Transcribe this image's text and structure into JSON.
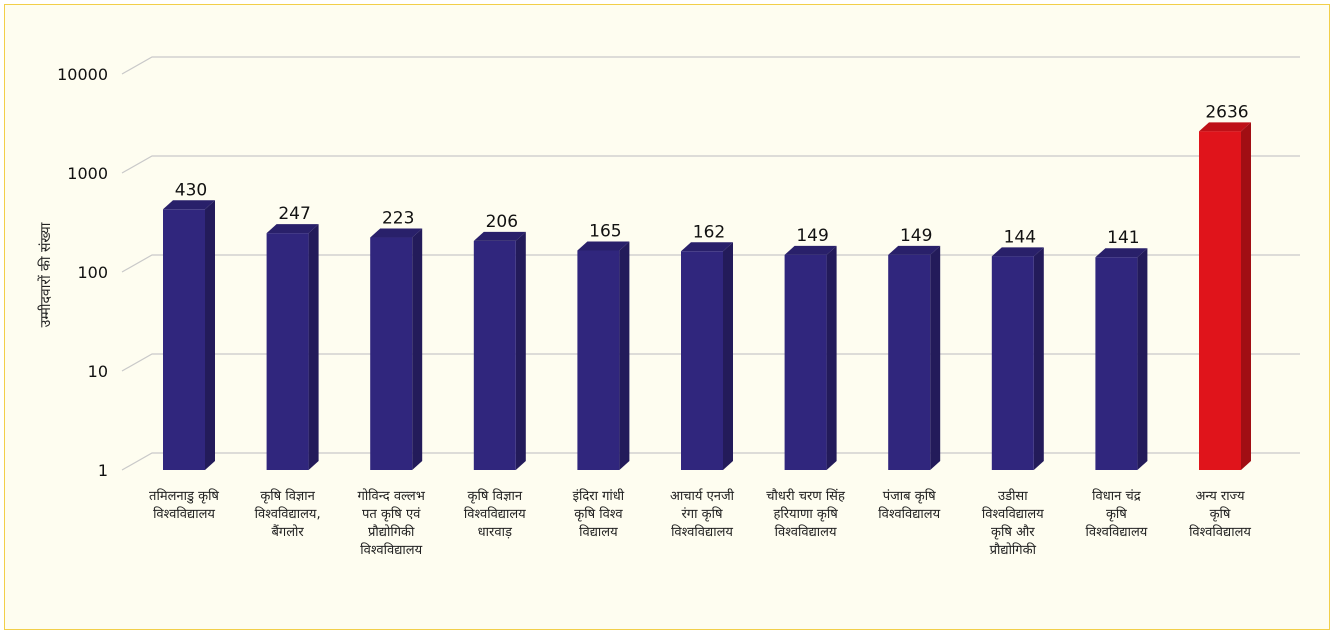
{
  "chart_data": {
    "type": "bar",
    "scale": "log",
    "ylabel": "उम्मीदवारों की संख्या",
    "ylim": [
      1,
      10000
    ],
    "yticks": [
      "1",
      "10",
      "100",
      "1000",
      "10000"
    ],
    "grid": true,
    "categories": [
      [
        "तमिलनाडु कृषि",
        "विश्वविद्यालय"
      ],
      [
        "कृषि विज्ञान",
        "विश्वविद्यालय,",
        "बैंगलोर"
      ],
      [
        "गोविन्द वल्लभ",
        "पत कृषि एवं",
        "प्रौद्योगिकी",
        "विश्वविद्यालय"
      ],
      [
        "कृषि विज्ञान",
        "विश्वविद्यालय",
        "धारवाड़"
      ],
      [
        "इंदिरा गांधी",
        "कृषि विश्व",
        "विद्यालय"
      ],
      [
        "आचार्य एनजी",
        "रंगा कृषि",
        "विश्वविद्यालय"
      ],
      [
        "चौधरी चरण सिंह",
        "हरियाणा कृषि",
        "विश्वविद्यालय"
      ],
      [
        "पंजाब कृषि",
        "विश्वविद्यालय"
      ],
      [
        "उडीसा",
        "विश्वविद्यालय",
        "कृषि और",
        "प्रौद्योगिकी"
      ],
      [
        "विधान चंद्र",
        "कृषि",
        "विश्वविद्यालय"
      ],
      [
        "अन्य राज्य",
        "कृषि",
        "विश्वविद्यालय"
      ]
    ],
    "values": [
      430,
      247,
      223,
      206,
      165,
      162,
      149,
      149,
      144,
      141,
      2636
    ],
    "value_labels": [
      "430",
      "247",
      "223",
      "206",
      "165",
      "162",
      "149",
      "149",
      "144",
      "141",
      "2636"
    ],
    "colors": {
      "default_bar": "#30267d",
      "highlight_bar": "#e0141b",
      "highlight_index": 10,
      "grid": "#c9c9c9",
      "frame": "#f2cf49",
      "background": "#fefdf0"
    }
  }
}
